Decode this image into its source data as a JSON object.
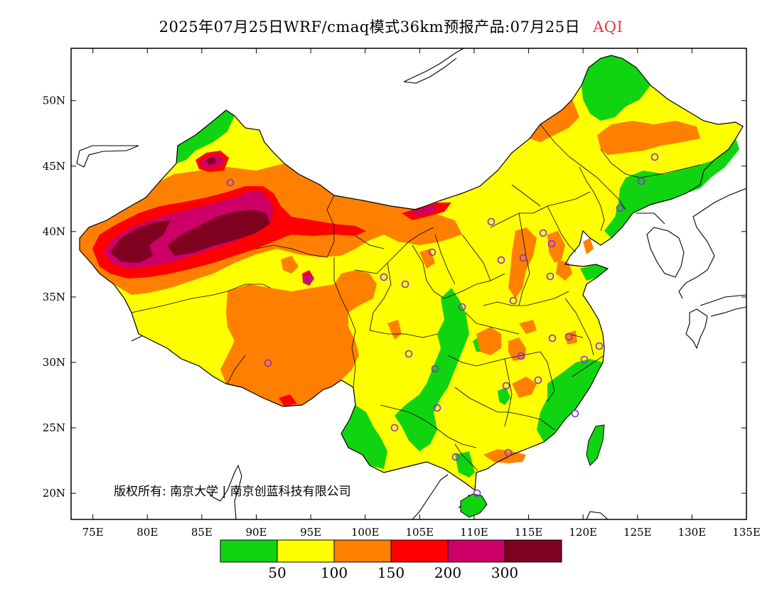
{
  "title": {
    "main": "2025年07月25日WRF/cmaq模式36km预报产品:07月25日",
    "variable": "AQI"
  },
  "map": {
    "lon_range": [
      73,
      135
    ],
    "lat_range": [
      18,
      54
    ],
    "x_ticks": [
      "75E",
      "80E",
      "85E",
      "90E",
      "95E",
      "100E",
      "105E",
      "110E",
      "115E",
      "120E",
      "125E",
      "130E",
      "135E"
    ],
    "y_ticks": [
      "20N",
      "25N",
      "30N",
      "35N",
      "40N",
      "45N",
      "50N"
    ],
    "copyright": "版权所有: 南京大学 | 南京创蓝科技有限公司"
  },
  "legend": {
    "colors": [
      "#11d411",
      "#ffff00",
      "#ff8000",
      "#ff0000",
      "#cc0066",
      "#800020"
    ],
    "labels": [
      "50",
      "100",
      "150",
      "200",
      "300"
    ]
  },
  "colors": {
    "green": "#11d411",
    "yellow": "#ffff00",
    "orange": "#ff8000",
    "red": "#ff0000",
    "magenta": "#cc0066",
    "maroon": "#800020",
    "title_accent": "#e0393b",
    "station_marker": "#8a2be2"
  }
}
